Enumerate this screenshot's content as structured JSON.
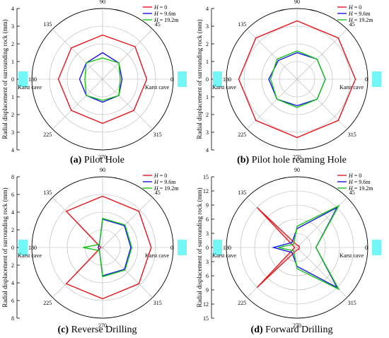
{
  "figure": {
    "colors": {
      "red": "#e8141b",
      "blue": "#1414e8",
      "green": "#19c419",
      "cave": "#73f6f6",
      "grid": "#b4b4b4"
    }
  },
  "chart_data": [
    {
      "type": "radar",
      "panel_letter": "(a)",
      "caption": "Pilot Hole",
      "ylabel": "Radial displacement of surrounding rock (mm)",
      "r_ticks": [
        "0",
        "1",
        "2",
        "3",
        "4"
      ],
      "r_max": 4,
      "angles_deg": [
        0,
        45,
        90,
        135,
        180,
        225,
        270,
        315
      ],
      "angle_labels": [
        "0",
        "45",
        "90",
        "135",
        "180",
        "225",
        "270",
        "315"
      ],
      "cave_label": "Karst cave",
      "legend": [
        {
          "label": "H = 0",
          "h": "H",
          "rest": " = 0"
        },
        {
          "label": "H = 9.6m",
          "h": "H",
          "rest": " = 9.6m"
        },
        {
          "label": "H = 19.2m",
          "h": "H",
          "rest": " = 19.2m"
        }
      ],
      "series": [
        {
          "name": "H = 0",
          "color": "red",
          "values": [
            2.5,
            2.6,
            2.5,
            2.5,
            2.5,
            2.5,
            2.5,
            2.5
          ]
        },
        {
          "name": "H = 9.6m",
          "color": "blue",
          "values": [
            1.1,
            1.3,
            1.5,
            1.3,
            1.3,
            1.3,
            1.3,
            1.3
          ]
        },
        {
          "name": "H = 19.2m",
          "color": "green",
          "values": [
            1.0,
            1.3,
            1.2,
            1.3,
            1.0,
            1.3,
            1.2,
            1.3
          ]
        }
      ]
    },
    {
      "type": "radar",
      "panel_letter": "(b)",
      "caption": "Pilot hole reaming Hole",
      "ylabel": "Radial displacement of surrounding rock (mm)",
      "r_ticks": [
        "0",
        "1",
        "2",
        "3",
        "4"
      ],
      "r_max": 4,
      "angles_deg": [
        0,
        45,
        90,
        135,
        180,
        225,
        270,
        315
      ],
      "angle_labels": [
        "0",
        "45",
        "90",
        "135",
        "180",
        "225",
        "270",
        "315"
      ],
      "cave_label": "Karst cave",
      "legend": [
        {
          "label": "H = 0",
          "h": "H",
          "rest": " = 0"
        },
        {
          "label": "H = 9.6m",
          "h": "H",
          "rest": " = 9.6m"
        },
        {
          "label": "H = 19.2m",
          "h": "H",
          "rest": " = 19.2m"
        }
      ],
      "series": [
        {
          "name": "H = 0",
          "color": "red",
          "values": [
            3.3,
            3.3,
            3.3,
            3.3,
            3.3,
            3.3,
            3.3,
            3.3
          ]
        },
        {
          "name": "H = 9.6m",
          "color": "blue",
          "values": [
            1.6,
            1.6,
            1.5,
            1.5,
            1.6,
            1.6,
            1.5,
            1.6
          ]
        },
        {
          "name": "H = 19.2m",
          "color": "green",
          "values": [
            1.6,
            1.6,
            1.6,
            1.6,
            1.5,
            1.6,
            1.6,
            1.6
          ]
        }
      ]
    },
    {
      "type": "radar",
      "panel_letter": "(c)",
      "caption": "Reverse Drilling",
      "ylabel": "Radial displacement of surrounding rock (mm)",
      "r_ticks": [
        "0",
        "2",
        "4",
        "6",
        "8"
      ],
      "r_max": 8,
      "angles_deg": [
        0,
        45,
        90,
        135,
        180,
        225,
        270,
        315
      ],
      "angle_labels": [
        "0",
        "45",
        "90",
        "135",
        "180",
        "225",
        "270",
        "315"
      ],
      "cave_label": "Karst cave",
      "legend": [
        {
          "label": "H = 0",
          "h": "H",
          "rest": " = 0"
        },
        {
          "label": "H = 9.6m",
          "h": "H",
          "rest": " = 9.6m"
        },
        {
          "label": "H = 19.2m",
          "h": "H",
          "rest": " = 19.2m"
        }
      ],
      "series": [
        {
          "name": "H = 0",
          "color": "red",
          "values": [
            5.5,
            5.8,
            5.8,
            5.8,
            0.2,
            5.8,
            5.8,
            5.8
          ]
        },
        {
          "name": "H = 9.6m",
          "color": "blue",
          "values": [
            3.2,
            3.5,
            3.2,
            0.5,
            0.5,
            0.5,
            3.2,
            3.5
          ]
        },
        {
          "name": "H = 19.2m",
          "color": "green",
          "values": [
            3.3,
            3.6,
            3.3,
            0.5,
            2.2,
            0.5,
            3.3,
            3.6
          ]
        }
      ]
    },
    {
      "type": "radar",
      "panel_letter": "(d)",
      "caption": "Forward Drilling",
      "ylabel": "Radial displacement of surrounding rock (mm)",
      "r_ticks": [
        "0",
        "3",
        "6",
        "9",
        "12",
        "15"
      ],
      "r_max": 15,
      "angles_deg": [
        0,
        45,
        90,
        135,
        180,
        225,
        270,
        315
      ],
      "angle_labels": [
        "0",
        "45",
        "90",
        "135",
        "180",
        "225",
        "270",
        "315"
      ],
      "cave_label": "Karst cave",
      "legend": [
        {
          "label": "H = 0",
          "h": "H",
          "rest": " = 0"
        },
        {
          "label": "H = 9.6m",
          "h": "H",
          "rest": " = 9.6m"
        },
        {
          "label": "H = 19.2m",
          "h": "H",
          "rest": " = 19.2m"
        }
      ],
      "series": [
        {
          "name": "H = 0",
          "color": "red",
          "values": [
            0.5,
            0.5,
            0.5,
            12,
            0.5,
            12,
            0.5,
            0.5
          ]
        },
        {
          "name": "H = 9.6m",
          "color": "blue",
          "values": [
            4,
            12,
            4,
            1.5,
            5,
            1.5,
            4,
            12
          ]
        },
        {
          "name": "H = 19.2m",
          "color": "green",
          "values": [
            4,
            12.5,
            4.5,
            1,
            4,
            1,
            4.5,
            12.5
          ]
        }
      ]
    }
  ]
}
